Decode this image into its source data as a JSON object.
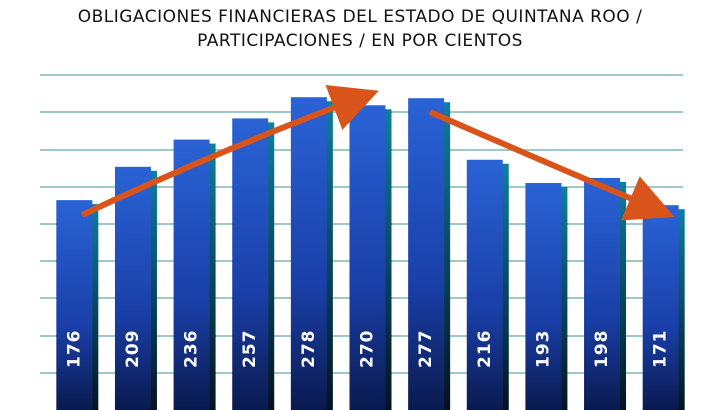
{
  "chart_data": {
    "type": "bar",
    "title": [
      "OBLIGACIONES FINANCIERAS DEL ESTADO DE QUINTANA ROO /",
      "PARTICIPACIONES / EN POR CIENTOS"
    ],
    "values": [
      176,
      209,
      236,
      257,
      278,
      270,
      277,
      216,
      193,
      198,
      171
    ],
    "ylim": [
      -32,
      300
    ],
    "color": "#1f4fc0"
  }
}
